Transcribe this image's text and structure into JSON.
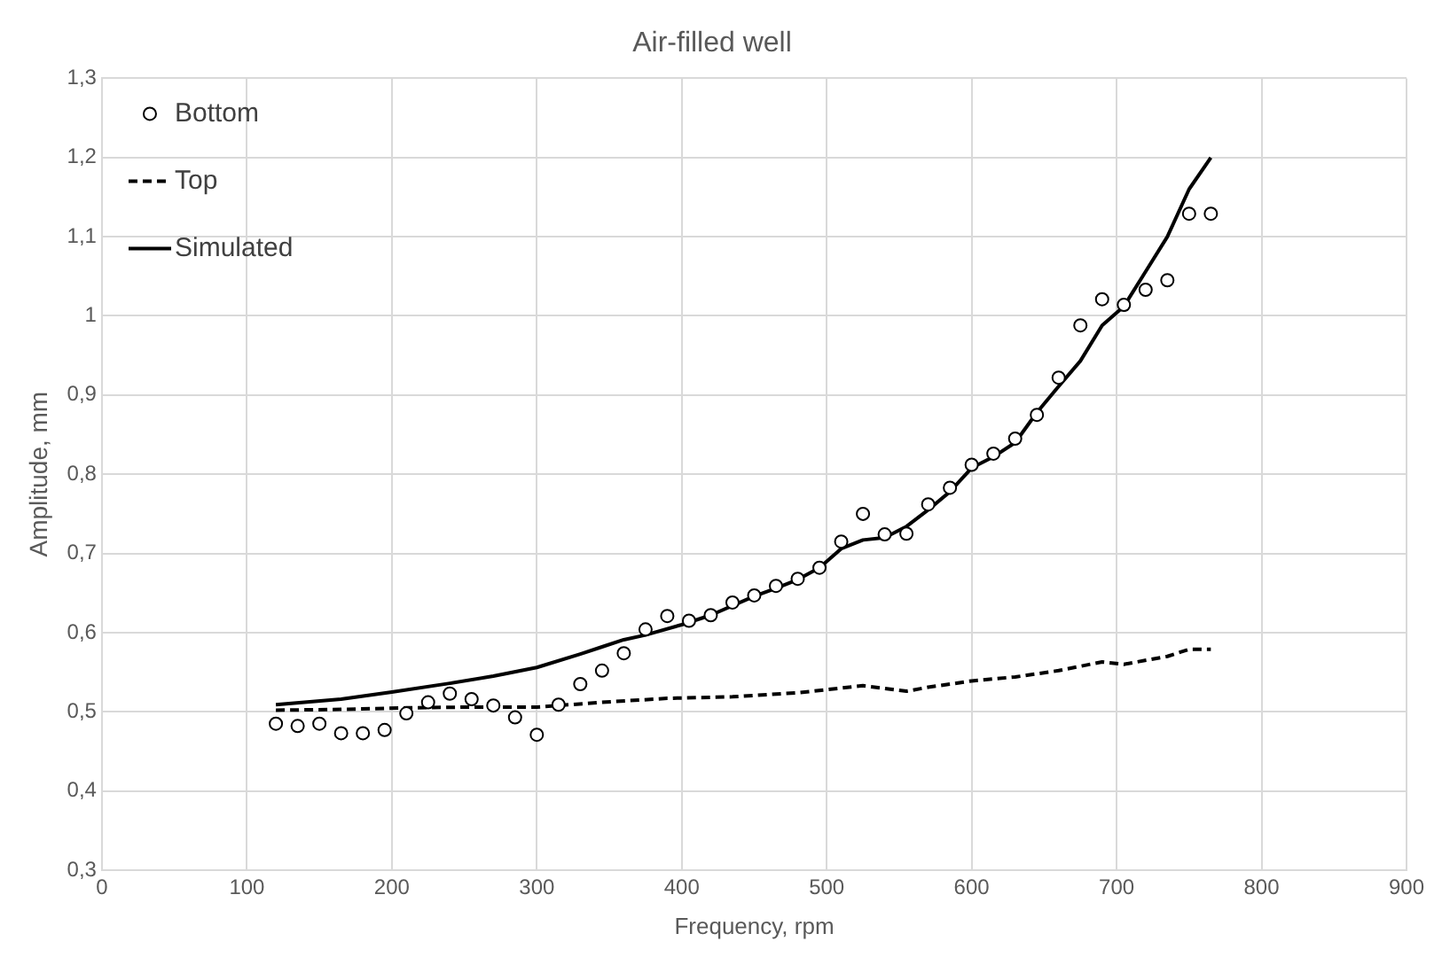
{
  "chart_data": {
    "type": "line",
    "title": "Air-filled well",
    "xlabel": "Frequency, rpm",
    "ylabel": "Amplitude, mm",
    "xlim": [
      0,
      900
    ],
    "xticks": [
      0,
      100,
      200,
      300,
      400,
      500,
      600,
      700,
      800,
      900
    ],
    "ylim": [
      0.3,
      1.3
    ],
    "yticks": [
      {
        "value": 0.3,
        "label": "0,3"
      },
      {
        "value": 0.4,
        "label": "0,4"
      },
      {
        "value": 0.5,
        "label": "0,5"
      },
      {
        "value": 0.6,
        "label": "0,6"
      },
      {
        "value": 0.7,
        "label": "0,7"
      },
      {
        "value": 0.8,
        "label": "0,8"
      },
      {
        "value": 0.9,
        "label": "0,9"
      },
      {
        "value": 1,
        "label": "1"
      },
      {
        "value": 1.1,
        "label": "1,1"
      },
      {
        "value": 1.2,
        "label": "1,2"
      },
      {
        "value": 1.3,
        "label": "1,3"
      }
    ],
    "grid": true,
    "legend": "top left",
    "series": [
      {
        "name": "Bottom",
        "type": "scatter",
        "marker": "circle",
        "color": "#000000",
        "x": [
          120,
          135,
          150,
          165,
          180,
          195,
          210,
          225,
          240,
          255,
          270,
          285,
          300,
          315,
          330,
          345,
          360,
          375,
          390,
          405,
          420,
          435,
          450,
          465,
          480,
          495,
          510,
          525,
          540,
          555,
          570,
          585,
          600,
          615,
          630,
          645,
          660,
          675,
          690,
          705,
          720,
          735,
          750,
          765
        ],
        "values": [
          0.485,
          0.482,
          0.485,
          0.473,
          0.473,
          0.477,
          0.498,
          0.512,
          0.523,
          0.516,
          0.508,
          0.493,
          0.471,
          0.509,
          0.535,
          0.552,
          0.574,
          0.604,
          0.621,
          0.615,
          0.622,
          0.638,
          0.647,
          0.659,
          0.668,
          0.682,
          0.715,
          0.75,
          0.724,
          0.725,
          0.762,
          0.783,
          0.812,
          0.826,
          0.845,
          0.875,
          0.922,
          0.988,
          1.021,
          1.014,
          1.033,
          1.045,
          1.129,
          1.129
        ]
      },
      {
        "name": "Top",
        "marker": "none",
        "line_style": "dashed",
        "color": "#000000",
        "x": [
          120,
          165,
          210,
          255,
          300,
          345,
          390,
          435,
          480,
          510,
          525,
          555,
          570,
          600,
          630,
          660,
          690,
          705,
          735,
          750,
          765
        ],
        "values": [
          0.502,
          0.503,
          0.505,
          0.506,
          0.506,
          0.512,
          0.517,
          0.519,
          0.524,
          0.53,
          0.533,
          0.526,
          0.531,
          0.539,
          0.544,
          0.552,
          0.563,
          0.56,
          0.57,
          0.579,
          0.579
        ]
      },
      {
        "name": "Simulated",
        "marker": "none",
        "line_style": "solid",
        "color": "#000000",
        "x": [
          120,
          165,
          200,
          240,
          270,
          300,
          330,
          345,
          360,
          375,
          400,
          420,
          450,
          465,
          480,
          495,
          510,
          525,
          540,
          555,
          570,
          585,
          600,
          615,
          630,
          645,
          660,
          675,
          690,
          705,
          720,
          735,
          750,
          765
        ],
        "values": [
          0.509,
          0.516,
          0.525,
          0.536,
          0.545,
          0.556,
          0.573,
          0.582,
          0.591,
          0.597,
          0.61,
          0.622,
          0.646,
          0.656,
          0.667,
          0.682,
          0.706,
          0.717,
          0.72,
          0.734,
          0.755,
          0.778,
          0.808,
          0.822,
          0.84,
          0.878,
          0.911,
          0.943,
          0.988,
          1.012,
          1.056,
          1.1,
          1.16,
          1.2
        ]
      }
    ]
  }
}
